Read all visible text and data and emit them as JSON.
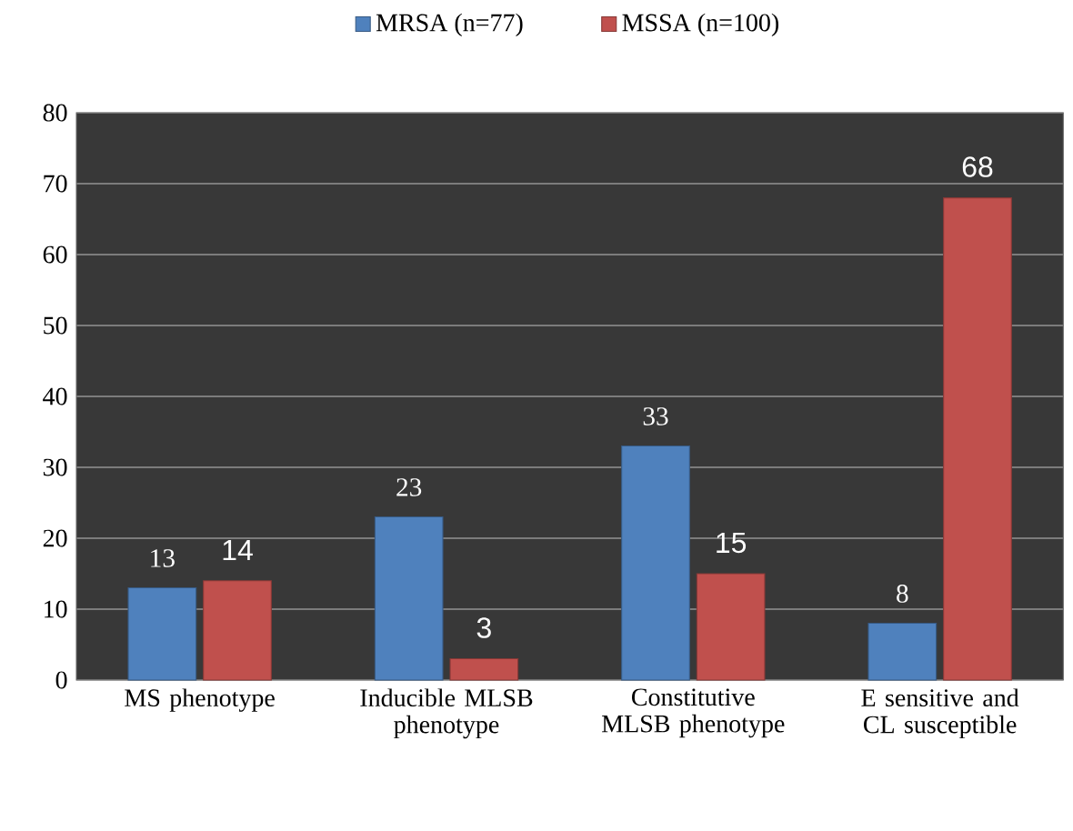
{
  "chart_data": {
    "type": "bar",
    "categories": [
      "MS phenotype",
      "Inducible MLSB phenotype",
      "Constitutive MLSB phenotype",
      "E sensitive and CL susceptible"
    ],
    "series": [
      {
        "name": "MRSA (n=77)",
        "color": "#4f81bd",
        "values": [
          13,
          23,
          33,
          8
        ]
      },
      {
        "name": "MSSA (n=100)",
        "color": "#c0504d",
        "values": [
          14,
          3,
          15,
          68
        ]
      }
    ],
    "ylim": [
      0,
      80
    ],
    "yticks": [
      0,
      10,
      20,
      30,
      40,
      50,
      60,
      70,
      80
    ],
    "grid": "y",
    "legend": "top",
    "data_labels": true
  }
}
